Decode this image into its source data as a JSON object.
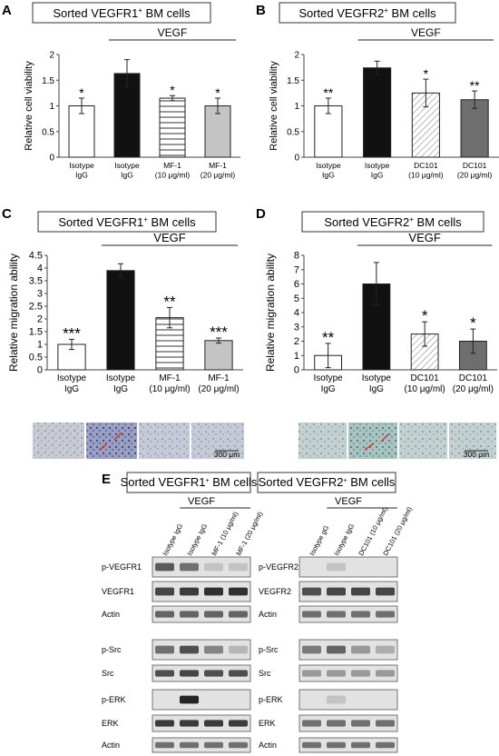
{
  "panels": {
    "A": {
      "letter": "A",
      "title_prefix": "Sorted VEGFR1",
      "title_sup": "+",
      "title_suffix": " BM cells"
    },
    "B": {
      "letter": "B",
      "title_prefix": "Sorted VEGFR2",
      "title_sup": "+",
      "title_suffix": " BM cells"
    },
    "C": {
      "letter": "C",
      "title_prefix": "Sorted VEGFR1",
      "title_sup": "+",
      "title_suffix": " BM cells",
      "scale_bar": "300 μm"
    },
    "D": {
      "letter": "D",
      "title_prefix": "Sorted VEGFR2",
      "title_sup": "+",
      "title_suffix": " BM cells",
      "scale_bar": "300 μm"
    },
    "E": {
      "letter": "E"
    }
  },
  "chart_data": [
    {
      "id": "A",
      "type": "bar",
      "ylabel": "Relative cell viability",
      "ylim": [
        0,
        2
      ],
      "yticks": [
        "0",
        "0.5",
        "1",
        "1.5",
        "2"
      ],
      "treatment_label": "VEGF",
      "categories": [
        [
          "Isotype",
          "IgG"
        ],
        [
          "Isotype",
          "IgG"
        ],
        [
          "MF-1",
          "(10 μg/ml)"
        ],
        [
          "MF-1",
          "(20 μg/ml)"
        ]
      ],
      "values": [
        1.0,
        1.63,
        1.15,
        1.0
      ],
      "errors": [
        0.15,
        0.27,
        0.05,
        0.15
      ],
      "significance": [
        "*",
        "",
        "*",
        "*"
      ],
      "fills": [
        "white",
        "black",
        "hstripes",
        "lightgray"
      ]
    },
    {
      "id": "B",
      "type": "bar",
      "ylabel": "Relative cell viability",
      "ylim": [
        0,
        2
      ],
      "yticks": [
        "0",
        "0.5",
        "1",
        "1.5",
        "2"
      ],
      "treatment_label": "VEGF",
      "categories": [
        [
          "Isotype",
          "IgG"
        ],
        [
          "Isotype",
          "IgG"
        ],
        [
          "DC101",
          "(10 μg/ml)"
        ],
        [
          "DC101",
          "(20 μg/ml)"
        ]
      ],
      "values": [
        1.0,
        1.74,
        1.25,
        1.12
      ],
      "errors": [
        0.15,
        0.13,
        0.27,
        0.17
      ],
      "significance": [
        "**",
        "",
        "*",
        "**"
      ],
      "fills": [
        "white",
        "black",
        "diag",
        "darkgray"
      ]
    },
    {
      "id": "C",
      "type": "bar",
      "ylabel": "Relative migration ability",
      "ylim": [
        0,
        4.5
      ],
      "yticks": [
        "0",
        "0.5",
        "1",
        "1.5",
        "2",
        "2.5",
        "3",
        "3.5",
        "4",
        "4.5"
      ],
      "treatment_label": "VEGF",
      "categories": [
        [
          "Isotype",
          "IgG"
        ],
        [
          "Isotype",
          "IgG"
        ],
        [
          "MF-1",
          "(10 μg/ml)"
        ],
        [
          "MF-1",
          "(20 μg/ml)"
        ]
      ],
      "values": [
        1.0,
        3.9,
        2.05,
        1.15
      ],
      "errors": [
        0.2,
        0.27,
        0.4,
        0.1
      ],
      "significance": [
        "***",
        "",
        "**",
        "***"
      ],
      "fills": [
        "white",
        "black",
        "hstripes",
        "lightgray"
      ]
    },
    {
      "id": "D",
      "type": "bar",
      "ylabel": "Relative migration ability",
      "ylim": [
        0,
        8
      ],
      "yticks": [
        "0",
        "1",
        "2",
        "3",
        "4",
        "5",
        "6",
        "7",
        "8"
      ],
      "treatment_label": "VEGF",
      "categories": [
        [
          "Isotype",
          "IgG"
        ],
        [
          "Isotype",
          "IgG"
        ],
        [
          "DC101",
          "(10 μg/ml)"
        ],
        [
          "DC101",
          "(20 μg/ml)"
        ]
      ],
      "values": [
        1.0,
        6.0,
        2.5,
        2.0
      ],
      "errors": [
        0.85,
        1.5,
        0.85,
        0.85
      ],
      "significance": [
        "**",
        "",
        "*",
        "*"
      ],
      "fills": [
        "white",
        "black",
        "diag",
        "darkgray"
      ]
    }
  ],
  "western": {
    "left": {
      "title_prefix": "Sorted VEGFR1",
      "title_sup": "+",
      "title_suffix": " BM cells",
      "treatment_label": "VEGF",
      "lanes": [
        "Isotype IgG",
        "Isotype IgG",
        "MF-1 (10 μg/ml)",
        "MF-1 (20 μg/ml)"
      ],
      "blots": [
        "p-VEGFR1",
        "VEGFR1",
        "Actin",
        "p-Src",
        "Src",
        "p-ERK",
        "ERK",
        "Actin"
      ]
    },
    "right": {
      "title_prefix": "Sorted VEGFR2",
      "title_sup": "+",
      "title_suffix": " BM cells",
      "treatment_label": "VEGF",
      "lanes": [
        "Isotype gG",
        "Isotype IgG",
        "DC101 (10 μg/ml)",
        "DC101 (20 μg/ml)"
      ],
      "blots": [
        "p-VEGFR2",
        "VEGFR2",
        "Actin",
        "p-Src",
        "Src",
        "p-ERK",
        "ERK",
        "Actin"
      ]
    }
  }
}
